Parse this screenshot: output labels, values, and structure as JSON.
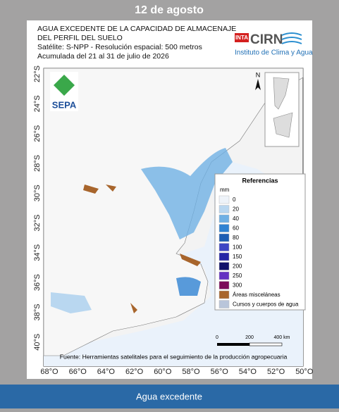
{
  "header": {
    "date": "12 de agosto"
  },
  "map": {
    "title_lines": [
      "AGUA EXCEDENTE DE LA CAPACIDAD DE ALMACENAJE",
      "DEL PERFIL DEL SUELO",
      "Satélite: S-NPP - Resolución espacial: 500 metros",
      "Acumulada del 21 al 31 de julio de 2026"
    ],
    "logos": {
      "sepa": "SEPA",
      "inta": "INTA",
      "cirn": "CIRN",
      "institute": "Instituto de Clima y Agua"
    },
    "north": "N",
    "lat_labels": [
      "22°S",
      "24°S",
      "26°S",
      "28°S",
      "30°S",
      "32°S",
      "34°S",
      "36°S",
      "38°S",
      "40°S"
    ],
    "lon_labels": [
      "68°O",
      "66°O",
      "64°O",
      "62°O",
      "60°O",
      "58°O",
      "56°O",
      "54°O",
      "52°O",
      "50°O"
    ],
    "legend": {
      "title": "Referencias",
      "unit": "mm",
      "items": [
        {
          "label": "0",
          "color": "#eef3f9"
        },
        {
          "label": "20",
          "color": "#b9d7f0"
        },
        {
          "label": "40",
          "color": "#6fb0e4"
        },
        {
          "label": "60",
          "color": "#2f82d2"
        },
        {
          "label": "80",
          "color": "#1c5db3"
        },
        {
          "label": "100",
          "color": "#3e46c4"
        },
        {
          "label": "150",
          "color": "#2424a6"
        },
        {
          "label": "200",
          "color": "#10106a"
        },
        {
          "label": "250",
          "color": "#6431c2"
        },
        {
          "label": "300",
          "color": "#7c0a5a"
        },
        {
          "label": "Áreas misceláneas",
          "color": "#a8652c"
        },
        {
          "label": "Cursos y cuerpos de agua",
          "color": "#b9c5da"
        }
      ]
    },
    "scale": [
      "0",
      "200",
      "400 km"
    ],
    "source": "Fuente: Herramientas satelitales para el seguimiento de la producción agropecuaria"
  },
  "footer": {
    "label": "Agua excedente"
  }
}
